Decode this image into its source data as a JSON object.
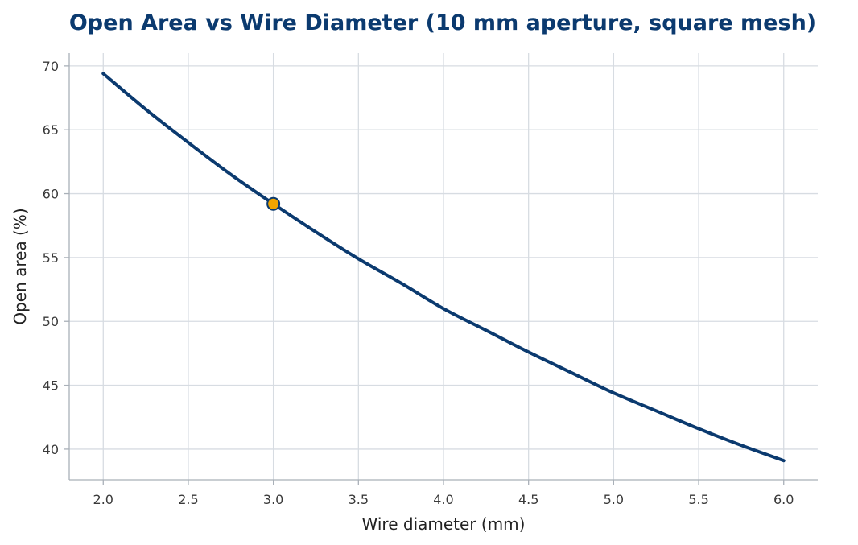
{
  "chart_data": {
    "type": "line",
    "title": "Open Area vs Wire Diameter (10 mm aperture, square mesh)",
    "xlabel": "Wire diameter (mm)",
    "ylabel": "Open area (%)",
    "xlim": [
      1.8,
      6.2
    ],
    "ylim": [
      37.6,
      71.0
    ],
    "xticks": [
      "2.0",
      "2.5",
      "3.0",
      "3.5",
      "4.0",
      "4.5",
      "5.0",
      "5.5",
      "6.0"
    ],
    "yticks": [
      "40",
      "45",
      "50",
      "55",
      "60",
      "65",
      "70"
    ],
    "grid": true,
    "series": [
      {
        "color": "#0b3a6f",
        "x": [
          2.0,
          2.25,
          2.5,
          2.75,
          3.0,
          3.25,
          3.5,
          3.75,
          4.0,
          4.25,
          4.5,
          4.75,
          5.0,
          5.25,
          5.5,
          5.75,
          6.0
        ],
        "y": [
          69.4,
          66.6,
          64.0,
          61.5,
          59.2,
          57.0,
          54.9,
          53.0,
          51.0,
          49.3,
          47.6,
          46.0,
          44.4,
          43.0,
          41.6,
          40.3,
          39.1
        ]
      }
    ],
    "highlight": {
      "x": 3.0,
      "y": 59.2,
      "color": "#f0a500",
      "edge_color": "#0b3a6f"
    }
  }
}
